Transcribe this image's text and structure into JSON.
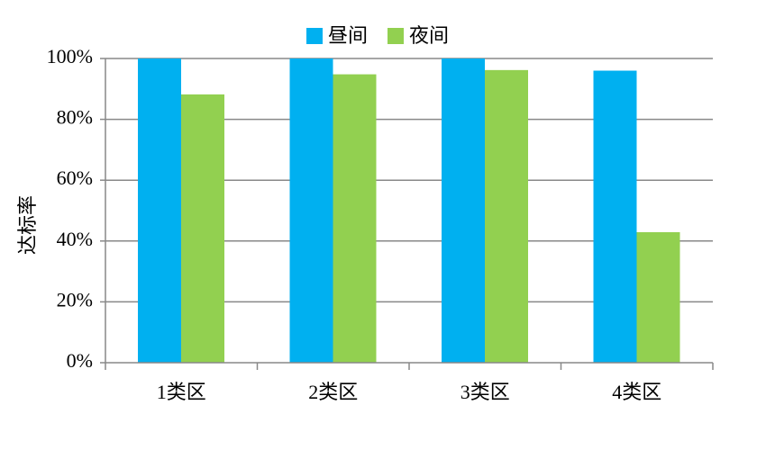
{
  "chart_data": {
    "type": "bar",
    "categories": [
      "1类区",
      "2类区",
      "3类区",
      "4类区"
    ],
    "series": [
      {
        "name": "昼间",
        "values": [
          100,
          100,
          100,
          96
        ],
        "color": "#00b0f0"
      },
      {
        "name": "夜间",
        "values": [
          88.2,
          94.8,
          96.2,
          42.9
        ],
        "color": "#92d050"
      }
    ],
    "ylabel": "达标率",
    "ylim": [
      0,
      100
    ],
    "yticks": [
      0,
      20,
      40,
      60,
      80,
      100
    ],
    "ytick_labels": [
      "0%",
      "20%",
      "40%",
      "60%",
      "80%",
      "100%"
    ],
    "grid": true,
    "legend_position": "top-center"
  }
}
